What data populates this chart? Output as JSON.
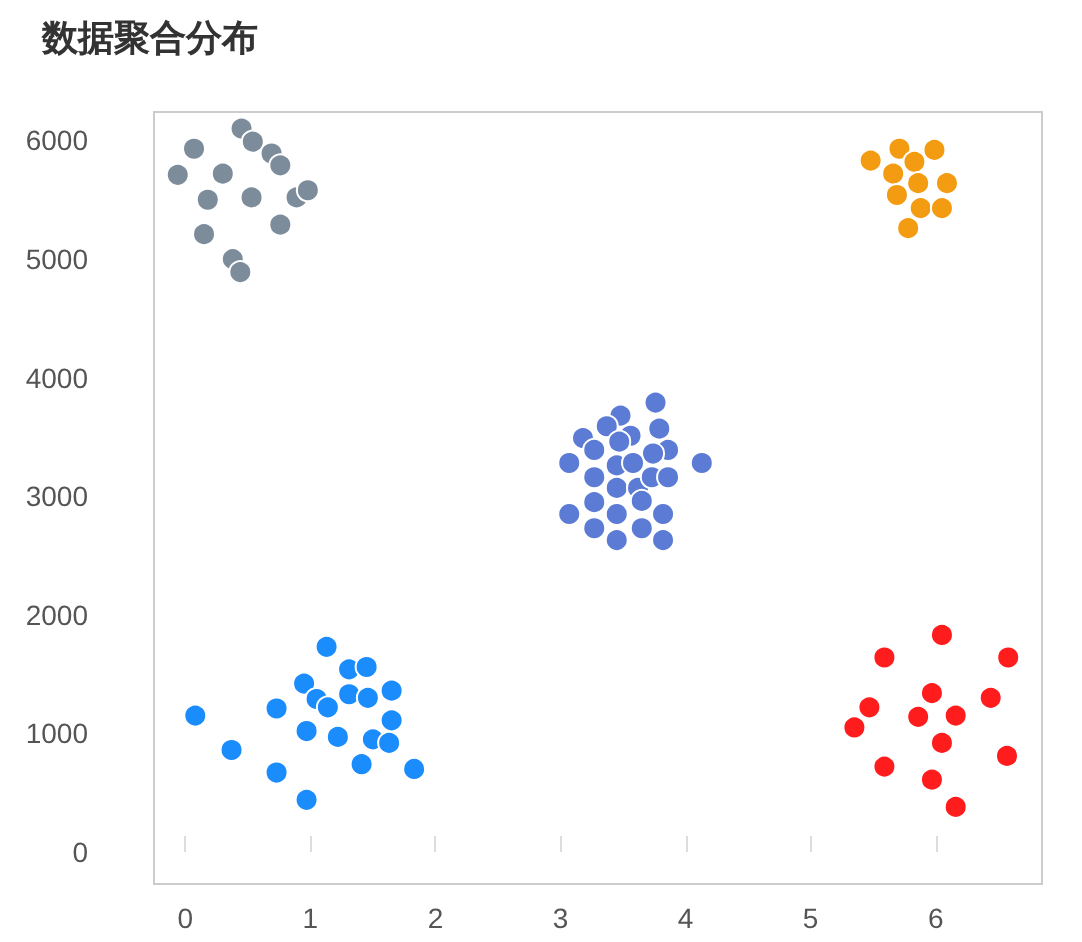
{
  "chart_data": {
    "type": "scatter",
    "title": "数据聚合分布",
    "marker": "circle",
    "xlim": [
      -0.25,
      6.85
    ],
    "xticks": [
      0,
      1,
      2,
      3,
      4,
      5,
      6
    ],
    "ylim": [
      -270,
      6240
    ],
    "yticks": [
      0,
      1000,
      2000,
      3000,
      4000,
      5000,
      6000
    ],
    "series": [
      {
        "color": "#7d8c9b",
        "x": [
          0.45,
          0.54,
          0.07,
          0.69,
          0.76,
          -0.06,
          0.3,
          0.18,
          0.53,
          0.89,
          0.98,
          0.15,
          0.76,
          0.38,
          0.44
        ],
        "values": [
          6100,
          5990,
          5930,
          5890,
          5790,
          5710,
          5720,
          5500,
          5520,
          5520,
          5580,
          5210,
          5290,
          5000,
          4890
        ]
      },
      {
        "color": "#f39c12",
        "x": [
          5.48,
          5.71,
          5.83,
          5.99,
          5.66,
          5.86,
          6.09,
          5.69,
          5.88,
          6.05,
          5.78
        ],
        "values": [
          5830,
          5930,
          5820,
          5920,
          5720,
          5640,
          5640,
          5540,
          5430,
          5430,
          5260
        ]
      },
      {
        "color": "#5b7bd5",
        "x": [
          3.76,
          3.48,
          3.37,
          3.56,
          3.18,
          3.47,
          3.79,
          3.27,
          3.86,
          3.74,
          3.07,
          3.45,
          3.58,
          4.13,
          3.27,
          3.45,
          3.62,
          3.73,
          3.86,
          3.65,
          3.27,
          3.07,
          3.45,
          3.82,
          3.27,
          3.65,
          3.45,
          3.82
        ],
        "values": [
          3790,
          3680,
          3590,
          3510,
          3490,
          3460,
          3570,
          3390,
          3390,
          3360,
          3280,
          3260,
          3280,
          3280,
          3160,
          3070,
          3070,
          3160,
          3160,
          2960,
          2950,
          2850,
          2850,
          2850,
          2730,
          2730,
          2630,
          2630
        ]
      },
      {
        "color": "#1b8cfc",
        "x": [
          1.13,
          1.31,
          1.45,
          0.95,
          1.31,
          1.46,
          1.65,
          1.05,
          1.14,
          0.73,
          0.08,
          0.97,
          1.22,
          1.5,
          1.63,
          1.65,
          0.37,
          1.41,
          1.83,
          0.73,
          0.97
        ],
        "values": [
          1730,
          1540,
          1560,
          1420,
          1330,
          1300,
          1360,
          1290,
          1220,
          1210,
          1150,
          1020,
          970,
          950,
          920,
          1110,
          860,
          740,
          700,
          670,
          440
        ]
      },
      {
        "color": "#ff1c1c",
        "x": [
          6.05,
          5.59,
          6.58,
          5.97,
          6.44,
          5.47,
          5.86,
          6.16,
          5.35,
          6.05,
          6.57,
          5.59,
          5.97,
          6.16
        ],
        "values": [
          1830,
          1640,
          1640,
          1340,
          1300,
          1220,
          1140,
          1150,
          1050,
          920,
          810,
          720,
          610,
          380
        ]
      }
    ]
  }
}
